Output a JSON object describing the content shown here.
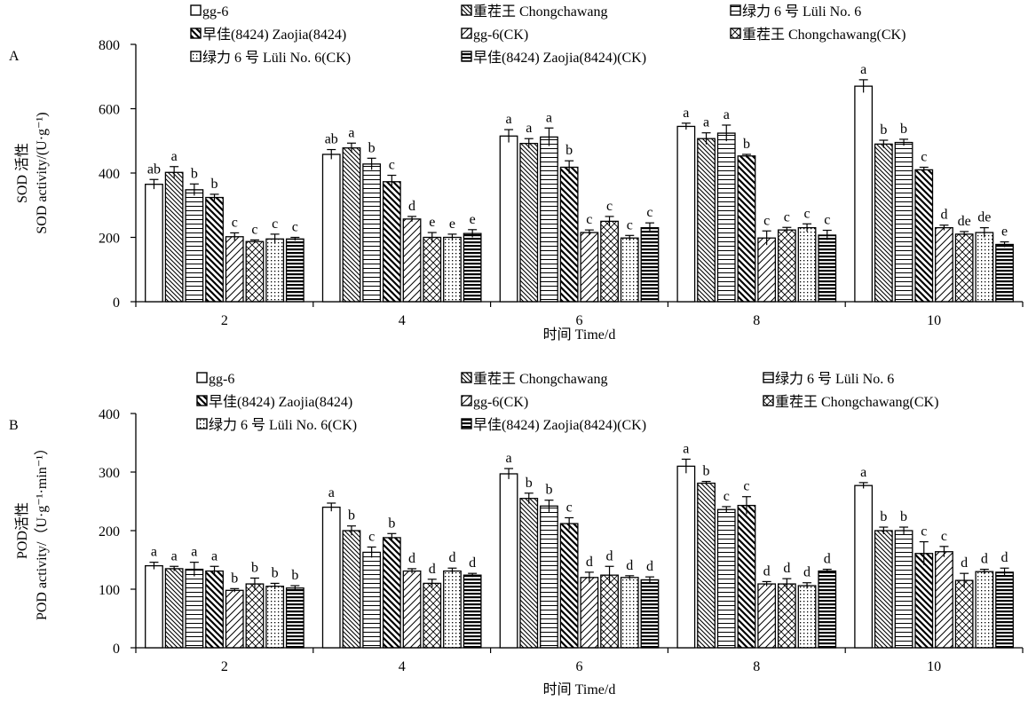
{
  "legend_labels": [
    "gg-6",
    "重茬王 Chongchawang",
    "绿力 6 号 Lüli No. 6",
    "早佳(8424) Zaojia(8424)",
    "gg-6(CK)",
    "重茬王 Chongchawang(CK)",
    "绿力 6 号 Lüli No. 6(CK)",
    "早佳(8424) Zaojia(8424)(CK)"
  ],
  "chart_data": [
    {
      "type": "bar",
      "panel_label": "A",
      "ylabel_zh": "SOD 活性",
      "ylabel": "SOD activity/(U·g⁻¹)",
      "xlabel": "时间 Time/d",
      "categories": [
        "2",
        "4",
        "6",
        "8",
        "10"
      ],
      "ylim": [
        0,
        800
      ],
      "yticks": [
        "0",
        "200",
        "400",
        "600",
        "800"
      ],
      "grid": false,
      "legend_position": "top",
      "series": [
        {
          "name": "gg-6",
          "values": [
            365,
            458,
            515,
            545,
            670
          ],
          "errors": [
            15,
            15,
            20,
            10,
            20
          ],
          "letters": [
            "ab",
            "ab",
            "a",
            "a",
            "a"
          ]
        },
        {
          "name": "重茬王 Chongchawang",
          "values": [
            402,
            478,
            492,
            507,
            490
          ],
          "errors": [
            18,
            15,
            15,
            18,
            12
          ],
          "letters": [
            "a",
            "a",
            "a",
            "a",
            "b"
          ]
        },
        {
          "name": "绿力 6 号 Lüli No. 6",
          "values": [
            348,
            428,
            512,
            524,
            495
          ],
          "errors": [
            18,
            18,
            28,
            25,
            10
          ],
          "letters": [
            "b",
            "b",
            "a",
            "a",
            "b"
          ]
        },
        {
          "name": "早佳(8424) Zaojia(8424)",
          "values": [
            324,
            373,
            418,
            453,
            410
          ],
          "errors": [
            10,
            20,
            20,
            5,
            8
          ],
          "letters": [
            "b",
            "c",
            "b",
            "b",
            "c"
          ]
        },
        {
          "name": "gg-6(CK)",
          "values": [
            202,
            257,
            215,
            198,
            230
          ],
          "errors": [
            12,
            8,
            8,
            22,
            8
          ],
          "letters": [
            "c",
            "d",
            "c",
            "c",
            "d"
          ]
        },
        {
          "name": "重茬王 Chongchawang(CK)",
          "values": [
            187,
            200,
            250,
            223,
            210
          ],
          "errors": [
            5,
            15,
            15,
            8,
            8
          ],
          "letters": [
            "c",
            "e",
            "c",
            "c",
            "de"
          ]
        },
        {
          "name": "绿力 6 号 Lüli No. 6(CK)",
          "values": [
            195,
            200,
            198,
            230,
            215
          ],
          "errors": [
            15,
            10,
            8,
            12,
            15
          ],
          "letters": [
            "c",
            "e",
            "c",
            "c",
            "de"
          ]
        },
        {
          "name": "早佳(8424) Zaojia(8424)(CK)",
          "values": [
            195,
            212,
            230,
            207,
            178
          ],
          "errors": [
            5,
            12,
            15,
            15,
            8
          ],
          "letters": [
            "c",
            "e",
            "c",
            "c",
            "e"
          ]
        }
      ]
    },
    {
      "type": "bar",
      "panel_label": "B",
      "ylabel_zh": "POD活性",
      "ylabel": "POD activity/（U·g⁻¹·min⁻¹）",
      "xlabel": "时间 Time/d",
      "categories": [
        "2",
        "4",
        "6",
        "8",
        "10"
      ],
      "ylim": [
        0,
        400
      ],
      "yticks": [
        "0",
        "100",
        "200",
        "300",
        "400"
      ],
      "grid": false,
      "legend_position": "top",
      "series": [
        {
          "name": "gg-6",
          "values": [
            140,
            240,
            297,
            310,
            277
          ],
          "errors": [
            6,
            7,
            9,
            12,
            5
          ],
          "letters": [
            "a",
            "a",
            "a",
            "a",
            "a"
          ]
        },
        {
          "name": "重茬王 Chongchawang",
          "values": [
            135,
            200,
            255,
            281,
            200
          ],
          "errors": [
            4,
            8,
            9,
            3,
            6
          ],
          "letters": [
            "a",
            "b",
            "b",
            "b",
            "b"
          ]
        },
        {
          "name": "绿力 6 号 Lüli No. 6",
          "values": [
            134,
            163,
            242,
            236,
            200
          ],
          "errors": [
            12,
            9,
            10,
            5,
            6
          ],
          "letters": [
            "a",
            "c",
            "b",
            "c",
            "b"
          ]
        },
        {
          "name": "早佳(8424) Zaojia(8424)",
          "values": [
            131,
            188,
            212,
            243,
            161
          ],
          "errors": [
            8,
            7,
            10,
            15,
            20
          ],
          "letters": [
            "a",
            "b",
            "c",
            "c",
            "c"
          ]
        },
        {
          "name": "gg-6(CK)",
          "values": [
            98,
            131,
            120,
            109,
            164
          ],
          "errors": [
            3,
            4,
            9,
            4,
            9
          ],
          "letters": [
            "b",
            "d",
            "d",
            "d",
            "c"
          ]
        },
        {
          "name": "重茬王 Chongchawang(CK)",
          "values": [
            109,
            110,
            124,
            109,
            115
          ],
          "errors": [
            10,
            7,
            15,
            9,
            12
          ],
          "letters": [
            "b",
            "d",
            "d",
            "d",
            "d"
          ]
        },
        {
          "name": "绿力 6 号 Lüli No. 6(CK)",
          "values": [
            105,
            131,
            120,
            106,
            130
          ],
          "errors": [
            5,
            5,
            3,
            5,
            4
          ],
          "letters": [
            "b",
            "d",
            "d",
            "d",
            "d"
          ]
        },
        {
          "name": "早佳(8424) Zaojia(8424)(CK)",
          "values": [
            102,
            124,
            116,
            131,
            129
          ],
          "errors": [
            4,
            3,
            5,
            3,
            7
          ],
          "letters": [
            "b",
            "d",
            "d",
            "d",
            "d"
          ]
        }
      ]
    }
  ]
}
